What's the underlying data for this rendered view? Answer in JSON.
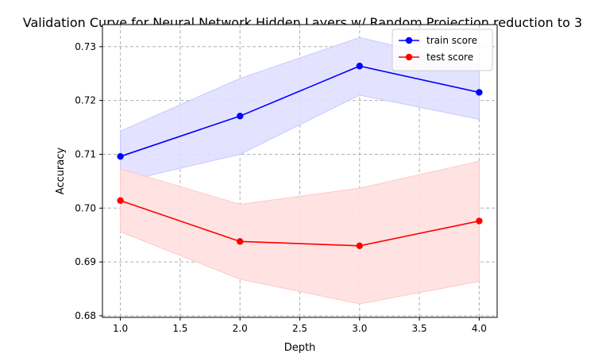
{
  "chart_data": {
    "type": "line",
    "title": "Validation Curve for Neural Network Hidden Layers w/ Random Projection reduction to 3",
    "xlabel": "Depth",
    "ylabel": "Accuracy",
    "x": [
      1.0,
      2.0,
      3.0,
      4.0
    ],
    "xlim": [
      0.85,
      4.15
    ],
    "ylim": [
      0.6797,
      0.7341
    ],
    "xticks": [
      1.0,
      1.5,
      2.0,
      2.5,
      3.0,
      3.5,
      4.0
    ],
    "xtick_labels": [
      "1.0",
      "1.5",
      "2.0",
      "2.5",
      "3.0",
      "3.5",
      "4.0"
    ],
    "yticks": [
      0.68,
      0.69,
      0.7,
      0.71,
      0.72,
      0.73
    ],
    "ytick_labels": [
      "0.68",
      "0.69",
      "0.70",
      "0.71",
      "0.72",
      "0.73"
    ],
    "grid": true,
    "legend_position": "top-right",
    "series": [
      {
        "name": "train score",
        "color": "#0000ff",
        "band_color": "#e0e0ff",
        "band_edge_color": "#c8c8ff",
        "values": [
          0.7096,
          0.7171,
          0.7264,
          0.7215
        ],
        "upper": [
          0.7143,
          0.7241,
          0.7317,
          0.7265
        ],
        "lower": [
          0.7048,
          0.71,
          0.721,
          0.7165
        ]
      },
      {
        "name": "test score",
        "color": "#ff0000",
        "band_color": "#ffe0e0",
        "band_edge_color": "#ffc8c8",
        "values": [
          0.7014,
          0.6938,
          0.693,
          0.6976
        ],
        "upper": [
          0.7073,
          0.7007,
          0.7037,
          0.7087
        ],
        "lower": [
          0.6956,
          0.6868,
          0.6822,
          0.6864
        ]
      }
    ]
  }
}
